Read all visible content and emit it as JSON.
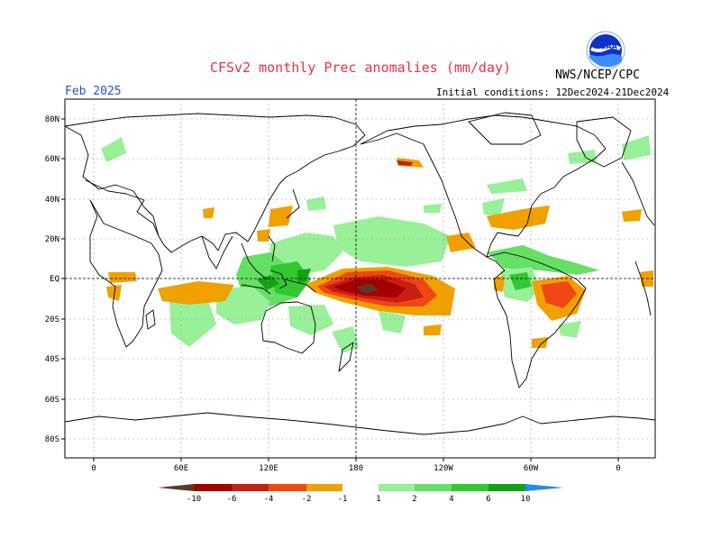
{
  "header": {
    "title": "CFSv2 monthly Prec anomalies (mm/day)",
    "month": "Feb 2025",
    "initial_conditions": "Initial conditions: 12Dec2024-21Dec2024",
    "agency": "NWS/NCEP/CPC",
    "logo_text": "NOAA"
  },
  "axes": {
    "lat_labels": [
      "80N",
      "60N",
      "40N",
      "20N",
      "EQ",
      "20S",
      "40S",
      "60S",
      "80S"
    ],
    "lon_labels": [
      "0",
      "60E",
      "120E",
      "180",
      "120W",
      "60W",
      "0"
    ]
  },
  "legend": {
    "labels": [
      "-10",
      "-6",
      "-4",
      "-2",
      "-1",
      "1",
      "2",
      "4",
      "6",
      "10"
    ],
    "colors": {
      "dry_extreme": "#5a3a2a",
      "dry_10": "#a50000",
      "dry_6": "#c81e14",
      "dry_4": "#f04614",
      "dry_2": "#f0a000",
      "wet_1": "#98f098",
      "wet_2": "#64e064",
      "wet_4": "#32c832",
      "wet_6": "#14a014",
      "wet_10": "#1e8cf0"
    }
  },
  "colors": {
    "title": "#e8324a",
    "month": "#2a4fd8",
    "coast": "#000000",
    "grid": "#999999"
  }
}
